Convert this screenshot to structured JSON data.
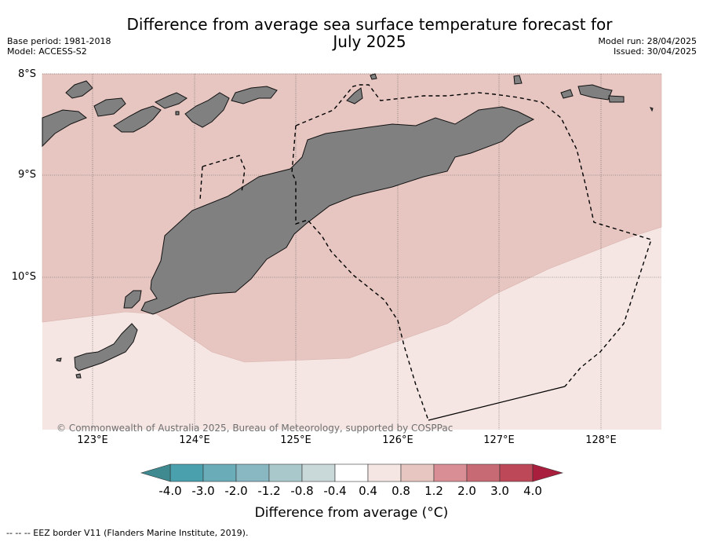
{
  "title": "Difference from average sea surface temperature forecast for\nJuly 2025",
  "meta_left": {
    "base_period": "Base period: 1981-2018",
    "model": "Model: ACCESS-S2"
  },
  "meta_right": {
    "model_run": "Model run: 28/04/2025",
    "issued": "Issued: 30/04/2025"
  },
  "lat_labels": [
    "8°S",
    "9°S",
    "10°S"
  ],
  "lon_labels": [
    "123°E",
    "124°E",
    "125°E",
    "126°E",
    "127°E",
    "128°E"
  ],
  "copyright": "© Commonwealth of Australia 2025, Bureau of Meteorology, supported by COSPPac",
  "colorbar": {
    "ticks": [
      "-4.0",
      "-3.0",
      "-2.0",
      "-1.2",
      "-0.8",
      "-0.4",
      "0.4",
      "0.8",
      "1.2",
      "2.0",
      "3.0",
      "4.0"
    ],
    "colors": [
      "#4aa0ad",
      "#6aacb8",
      "#89b8c3",
      "#a9c8cc",
      "#c9d8d8",
      "#ffffff",
      "#f5e6e3",
      "#e7c6c1",
      "#d88e94",
      "#c86a74",
      "#bd4958"
    ],
    "under_color": "#3e8a90",
    "over_color": "#a81e3c",
    "label": "Difference from average ($^\\circ$C)",
    "label_display": "Difference from average (°C)"
  },
  "map_colors": {
    "anomaly_0_4_to_0_8": "#f5e6e3",
    "anomaly_0_8_to_1_2": "#e7c6c1",
    "land": "#808080"
  },
  "footer": "--  --  -- EEZ border V11 (Flanders Marine Institute, 2019)."
}
